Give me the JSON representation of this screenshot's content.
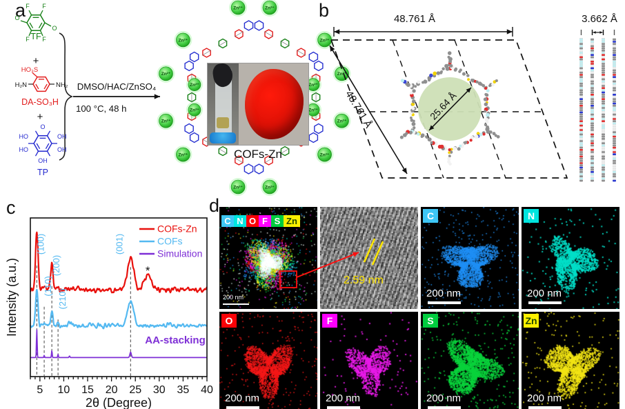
{
  "panels": {
    "a": "a",
    "b": "b",
    "c": "c",
    "d": "d"
  },
  "panel_a": {
    "tf": {
      "name": "TF",
      "f": "F",
      "o": "O"
    },
    "da": {
      "name": "DA-SO₃H",
      "so3": "HO₃S",
      "amine_left": "H₂N",
      "amine_right": "NH₂"
    },
    "tp": {
      "name": "TP",
      "ho": "HO",
      "oh": "OH",
      "o": "O"
    },
    "plus": "+",
    "conditions_line1": "DMSO/HAC/ZnSO₄",
    "conditions_line2": "100 °C, 48 h",
    "zn_ion": "Zn²⁺",
    "product_label": "COFs-Zn"
  },
  "panel_b": {
    "dim_top": "48.761 Å",
    "dim_diagonal": "48.761 Å",
    "pore_diameter": "25.64 Å",
    "layer_spacing": "3.662 Å"
  },
  "chart_data": {
    "type": "line",
    "title": "",
    "xlabel": "2θ (Degree)",
    "ylabel": "Intensity (a.u.)",
    "xlim": [
      3,
      40
    ],
    "xticks": [
      5,
      10,
      15,
      20,
      25,
      30,
      35,
      40
    ],
    "grid": false,
    "legend_position": "top-right",
    "peak_labels": [
      {
        "text": "(100)",
        "two_theta": 4.35
      },
      {
        "text": "(110)",
        "two_theta": 5.9
      },
      {
        "text": "(200)",
        "two_theta": 7.5
      },
      {
        "text": "(210)",
        "two_theta": 8.8
      },
      {
        "text": "(001)",
        "two_theta": 24.0
      }
    ],
    "annotation": "AA-stacking",
    "asterisk": "*",
    "asterisk_two_theta": 27.6,
    "series": [
      {
        "name": "COFs-Zn",
        "color": "#e8100c",
        "baseline": 0.548,
        "noise": 0.01,
        "peaks": [
          {
            "x": 4.35,
            "h": 0.37,
            "w": 0.38
          },
          {
            "x": 5.9,
            "h": 0.025,
            "w": 0.25
          },
          {
            "x": 7.5,
            "h": 0.18,
            "w": 0.33
          },
          {
            "x": 8.8,
            "h": 0.018,
            "w": 0.3
          },
          {
            "x": 11.2,
            "h": 0.012,
            "w": 0.6
          },
          {
            "x": 24.0,
            "h": 0.2,
            "w": 0.95
          },
          {
            "x": 27.6,
            "h": 0.09,
            "w": 1.1
          }
        ]
      },
      {
        "name": "COFs",
        "color": "#54b9f1",
        "baseline": 0.322,
        "noise": 0.008,
        "peaks": [
          {
            "x": 4.35,
            "h": 0.23,
            "w": 0.34
          },
          {
            "x": 5.9,
            "h": 0.02,
            "w": 0.25
          },
          {
            "x": 7.5,
            "h": 0.105,
            "w": 0.3
          },
          {
            "x": 8.8,
            "h": 0.015,
            "w": 0.3
          },
          {
            "x": 11.2,
            "h": 0.02,
            "w": 0.5
          },
          {
            "x": 24.0,
            "h": 0.145,
            "w": 0.9
          }
        ]
      },
      {
        "name": "Simulation",
        "color": "#7e2fd6",
        "baseline": 0.12,
        "noise": 0.0,
        "peaks": [
          {
            "x": 4.35,
            "h": 0.175,
            "w": 0.1
          },
          {
            "x": 5.9,
            "h": 0.014,
            "w": 0.09
          },
          {
            "x": 7.5,
            "h": 0.045,
            "w": 0.1
          },
          {
            "x": 8.8,
            "h": 0.022,
            "w": 0.09
          },
          {
            "x": 11.2,
            "h": 0.01,
            "w": 0.12
          },
          {
            "x": 24.0,
            "h": 0.034,
            "w": 0.22
          }
        ]
      }
    ]
  },
  "panel_d": {
    "elements": [
      {
        "symbol": "C",
        "label_bg": "#3ec6f5",
        "label_color": "#ffffff",
        "dot_color": "#1f8ff5"
      },
      {
        "symbol": "N",
        "label_bg": "#00e5df",
        "label_color": "#ffffff",
        "dot_color": "#00dfc8"
      },
      {
        "symbol": "O",
        "label_bg": "#fb0207",
        "label_color": "#ffffff",
        "dot_color": "#f51818"
      },
      {
        "symbol": "F",
        "label_bg": "#ff00fe",
        "label_color": "#ffffff",
        "dot_color": "#e81ae8"
      },
      {
        "symbol": "S",
        "label_bg": "#00cd3f",
        "label_color": "#ffffff",
        "dot_color": "#0ad33c"
      },
      {
        "symbol": "Zn",
        "label_bg": "#fdf000",
        "label_color": "#234a00",
        "dot_color": "#f2e414"
      }
    ],
    "scale_bar": "200 nm",
    "hrtem_spacing": "2.59 nm"
  }
}
